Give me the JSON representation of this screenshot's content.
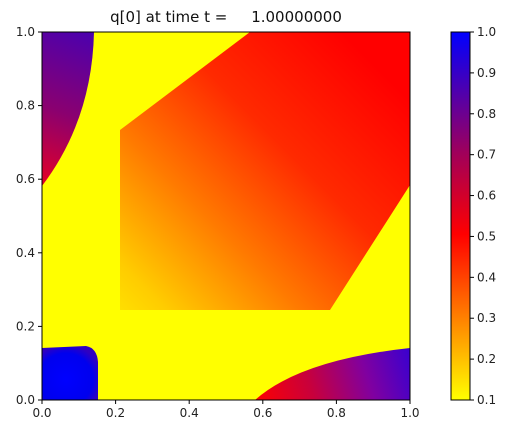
{
  "chart_data": {
    "type": "heatmap",
    "title": "q[0] at time t =     1.00000000",
    "xlabel": "",
    "ylabel": "",
    "xlim": [
      0.0,
      1.0
    ],
    "ylim": [
      0.0,
      1.0
    ],
    "x_ticks": [
      "0.0",
      "0.2",
      "0.4",
      "0.6",
      "0.8",
      "1.0"
    ],
    "y_ticks": [
      "0.0",
      "0.2",
      "0.4",
      "0.6",
      "0.8",
      "1.0"
    ],
    "grid": false,
    "colorbar": {
      "min": 0.1,
      "max": 1.0,
      "ticks": [
        "0.1",
        "0.2",
        "0.3",
        "0.4",
        "0.5",
        "0.6",
        "0.7",
        "0.8",
        "0.9",
        "1.0"
      ],
      "colors": {
        "low": "#ffff00",
        "mid": "#ff0000",
        "high": "#0000ff"
      }
    },
    "field_regions": [
      {
        "name": "background",
        "value": 0.1,
        "shape": "remaining area"
      },
      {
        "name": "lower-left square",
        "value": 1.0,
        "x_range": [
          0.0,
          0.15
        ],
        "y_range": [
          0.0,
          0.15
        ]
      },
      {
        "name": "upper-left wedge",
        "value_range": [
          0.6,
          0.95
        ],
        "x_range": [
          0.0,
          0.14
        ],
        "y_range": [
          0.58,
          1.0
        ]
      },
      {
        "name": "lower-right wedge",
        "value_range": [
          0.6,
          0.9
        ],
        "x_range": [
          0.58,
          1.0
        ],
        "y_range": [
          0.0,
          0.15
        ]
      },
      {
        "name": "diagonal band",
        "value_range": [
          0.15,
          0.65
        ],
        "x_range": [
          0.2,
          1.0
        ],
        "y_range": [
          0.2,
          1.0
        ]
      }
    ]
  }
}
